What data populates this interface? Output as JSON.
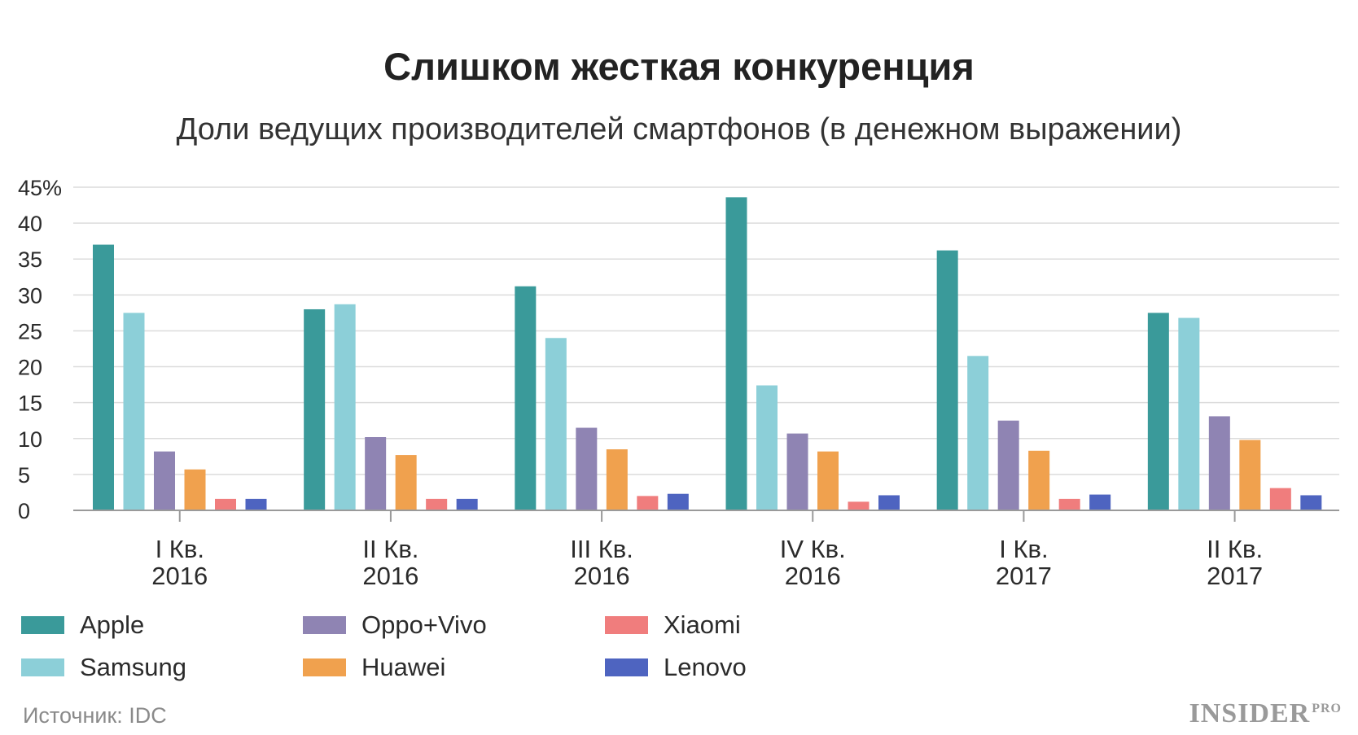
{
  "header": {
    "title": "Слишком жесткая конкуренция",
    "subtitle": "Доли ведущих производителей смартфонов (в денежном выражении)"
  },
  "footer": {
    "source": "Источник: IDC",
    "brand": "INSIDER",
    "brand_suffix": "PRO"
  },
  "chart_data": {
    "type": "bar",
    "categories": [
      [
        "I Кв.",
        "2016"
      ],
      [
        "II Кв.",
        "2016"
      ],
      [
        "III Кв.",
        "2016"
      ],
      [
        "IV Кв.",
        "2016"
      ],
      [
        "I Кв.",
        "2017"
      ],
      [
        "II Кв.",
        "2017"
      ]
    ],
    "ylim": [
      0,
      45
    ],
    "yticks": [
      0,
      5,
      10,
      15,
      20,
      25,
      30,
      35,
      40,
      45
    ],
    "ytick_labels": [
      "0",
      "5",
      "10",
      "15",
      "20",
      "25",
      "30",
      "35",
      "40",
      "45%"
    ],
    "grid": true,
    "legend_position": "bottom-left",
    "series": [
      {
        "name": "Apple",
        "color": "#3a9a9a",
        "values": [
          37,
          28,
          31.2,
          43.6,
          36.2,
          27.5
        ]
      },
      {
        "name": "Samsung",
        "color": "#8ccfd8",
        "values": [
          27.5,
          28.7,
          24,
          17.4,
          21.5,
          26.8
        ]
      },
      {
        "name": "Oppo+Vivo",
        "color": "#8f84b3",
        "values": [
          8.2,
          10.2,
          11.5,
          10.7,
          12.5,
          13.1
        ]
      },
      {
        "name": "Huawei",
        "color": "#f0a14e",
        "values": [
          5.7,
          7.7,
          8.5,
          8.2,
          8.3,
          9.8
        ]
      },
      {
        "name": "Xiaomi",
        "color": "#f07d7d",
        "values": [
          1.6,
          1.6,
          2,
          1.2,
          1.6,
          3.1
        ]
      },
      {
        "name": "Lenovo",
        "color": "#4e64c0",
        "values": [
          1.6,
          1.6,
          2.3,
          2.1,
          2.2,
          2.1
        ]
      }
    ]
  }
}
